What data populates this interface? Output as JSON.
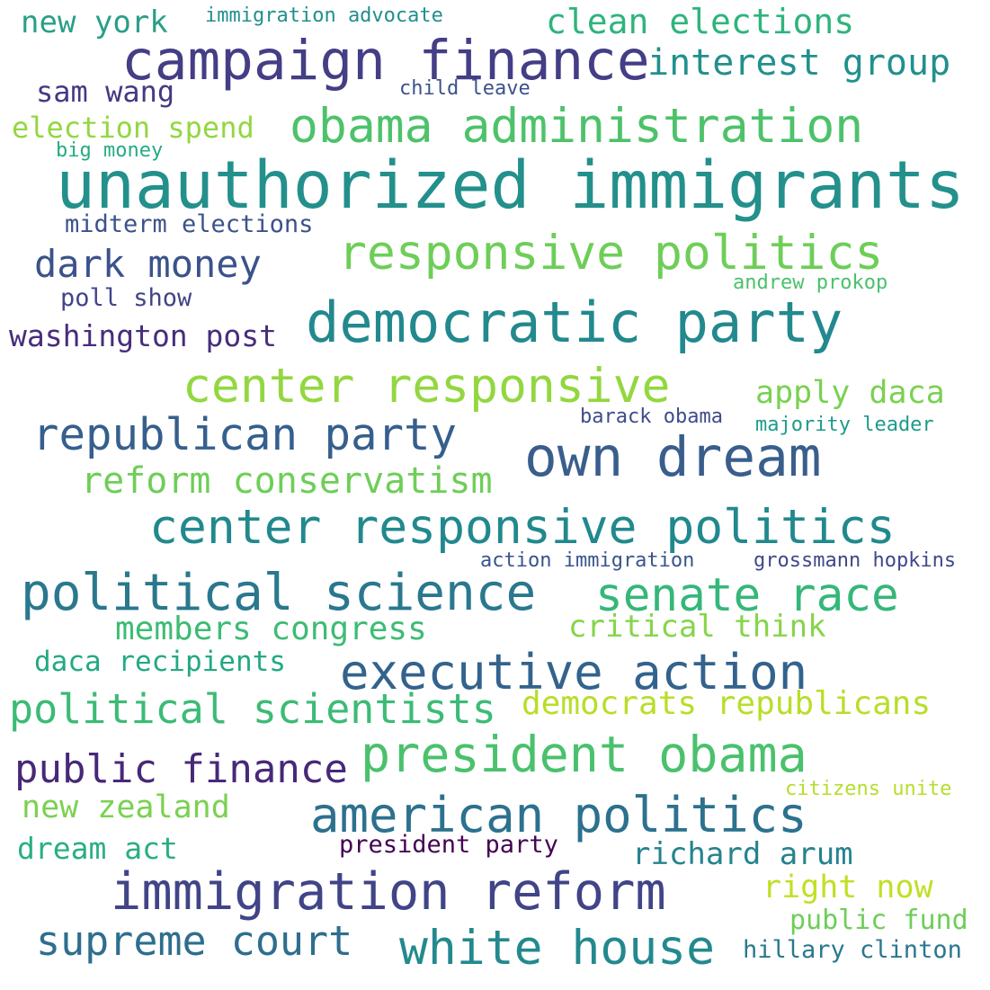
{
  "words": [
    {
      "text": "unauthorized immigrants",
      "color": "#23908c"
    },
    {
      "text": "campaign finance",
      "color": "#433e85"
    },
    {
      "text": "democratic party",
      "color": "#22898e"
    },
    {
      "text": "responsive politics",
      "color": "#6ece58"
    },
    {
      "text": "obama administration",
      "color": "#4dc26a"
    },
    {
      "text": "center responsive",
      "color": "#93d740"
    },
    {
      "text": "center responsive politics",
      "color": "#21898e"
    },
    {
      "text": "own dream",
      "color": "#3a5e8c"
    },
    {
      "text": "political science",
      "color": "#2a788e"
    },
    {
      "text": "senate race",
      "color": "#35b779"
    },
    {
      "text": "executive action",
      "color": "#33638d"
    },
    {
      "text": "president obama",
      "color": "#4ac16d"
    },
    {
      "text": "american politics",
      "color": "#2c718e"
    },
    {
      "text": "immigration reform",
      "color": "#414487"
    },
    {
      "text": "white house",
      "color": "#23898e"
    },
    {
      "text": "republican party",
      "color": "#355f8d"
    },
    {
      "text": "political scientists",
      "color": "#3cbb75"
    },
    {
      "text": "public finance",
      "color": "#482878"
    },
    {
      "text": "supreme court",
      "color": "#2e6e8e"
    },
    {
      "text": "reform conservatism",
      "color": "#6ece58"
    },
    {
      "text": "clean elections",
      "color": "#2fb47c"
    },
    {
      "text": "interest group",
      "color": "#21908d"
    },
    {
      "text": "dark money",
      "color": "#3b528b"
    },
    {
      "text": "washington post",
      "color": "#472d7b"
    },
    {
      "text": "apply daca",
      "color": "#7ad151"
    },
    {
      "text": "members congress",
      "color": "#3dbc74"
    },
    {
      "text": "critical think",
      "color": "#86d549"
    },
    {
      "text": "democrats republicans",
      "color": "#b8de29"
    },
    {
      "text": "new zealand",
      "color": "#7ad151"
    },
    {
      "text": "richard arum",
      "color": "#25838e"
    },
    {
      "text": "right now",
      "color": "#c2df23"
    },
    {
      "text": "new york",
      "color": "#2a9f88"
    },
    {
      "text": "sam wang",
      "color": "#443983"
    },
    {
      "text": "election spend",
      "color": "#93d741"
    },
    {
      "text": "midterm elections",
      "color": "#3b528b"
    },
    {
      "text": "daca recipients",
      "color": "#23a983"
    },
    {
      "text": "dream act",
      "color": "#29af7f"
    },
    {
      "text": "president party",
      "color": "#440154"
    },
    {
      "text": "public fund",
      "color": "#6ece58"
    },
    {
      "text": "hillary clinton",
      "color": "#2a788e"
    },
    {
      "text": "poll show",
      "color": "#414487"
    },
    {
      "text": "barack obama",
      "color": "#3e4c8a"
    },
    {
      "text": "majority leader",
      "color": "#1e9b8a"
    },
    {
      "text": "action immigration",
      "color": "#3a548c"
    },
    {
      "text": "grossmann hopkins",
      "color": "#3f4889"
    },
    {
      "text": "immigration advocate",
      "color": "#218f8d"
    },
    {
      "text": "child leave",
      "color": "#3b528b"
    },
    {
      "text": "big money",
      "color": "#25ab82"
    },
    {
      "text": "andrew prokop",
      "color": "#4ac16d"
    },
    {
      "text": "citizens unite",
      "color": "#b5de2b"
    }
  ]
}
